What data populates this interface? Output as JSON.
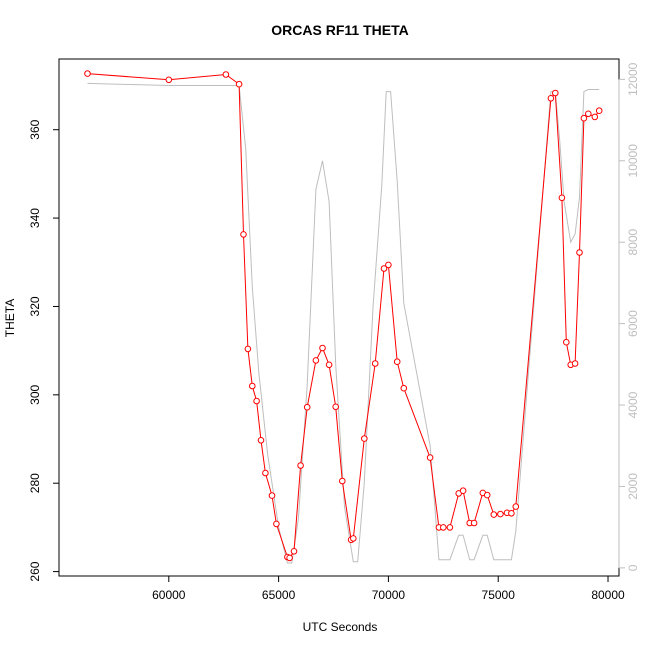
{
  "chart_data": {
    "type": "line",
    "title": "ORCAS RF11 THETA",
    "xlabel": "UTC Seconds",
    "ylabel": "THETA",
    "xlim": [
      55000,
      80500
    ],
    "ylim": [
      259,
      376
    ],
    "y2lim": [
      -200,
      12500
    ],
    "grid": false,
    "x_ticks": [
      60000,
      65000,
      70000,
      75000,
      80000
    ],
    "y_ticks": [
      260,
      280,
      300,
      320,
      340,
      360
    ],
    "y2_ticks": [
      0,
      2000,
      4000,
      6000,
      8000,
      10000,
      12000
    ],
    "colors": {
      "theta": "#ff0000",
      "altitude": "#bebebe",
      "axis": "#000000"
    },
    "series": [
      {
        "role": "theta",
        "x": [
          56300,
          60000,
          62600,
          63200,
          63400,
          63600,
          63800,
          64000,
          64200,
          64400,
          64700,
          64900,
          65400,
          65500,
          65700,
          66000,
          66300,
          66700,
          67000,
          67300,
          67600,
          67900,
          68300,
          68400,
          68900,
          69400,
          69800,
          70000,
          70400,
          70700,
          71900,
          72300,
          72500,
          72800,
          73200,
          73400,
          73700,
          73900,
          74300,
          74500,
          74800,
          75100,
          75400,
          75600,
          75800,
          77400,
          77600,
          77900,
          78100,
          78300,
          78500,
          78700,
          78900,
          79100,
          79400,
          79600
        ],
        "y": [
          372.7,
          371.3,
          372.5,
          370.3,
          336.3,
          310.4,
          302.0,
          298.6,
          289.7,
          282.3,
          277.2,
          270.8,
          263.3,
          263.1,
          264.6,
          284.0,
          297.2,
          307.8,
          310.6,
          306.8,
          297.3,
          280.5,
          267.2,
          267.5,
          290.1,
          307.1,
          328.6,
          329.4,
          307.5,
          301.5,
          285.8,
          270.0,
          270.0,
          270.0,
          277.7,
          278.3,
          271.0,
          271.0,
          277.8,
          277.3,
          272.9,
          273.0,
          273.3,
          273.2,
          274.7,
          367.1,
          368.3,
          344.6,
          311.9,
          306.8,
          307.1,
          332.2,
          362.6,
          363.6,
          362.9,
          364.3
        ]
      },
      {
        "role": "altitude",
        "x": [
          56300,
          60000,
          62600,
          63200,
          63500,
          63800,
          64100,
          64500,
          65000,
          65400,
          65600,
          65900,
          66300,
          66700,
          67000,
          67300,
          67600,
          68000,
          68400,
          68600,
          68900,
          69300,
          69700,
          69900,
          70100,
          70400,
          70700,
          71900,
          72300,
          72500,
          72800,
          73200,
          73400,
          73700,
          73900,
          74300,
          74500,
          74800,
          75100,
          75400,
          75600,
          75800,
          77400,
          77600,
          77800,
          78000,
          78300,
          78500,
          78700,
          78900,
          79100,
          79400,
          79600
        ],
        "y": [
          11900,
          11850,
          11850,
          11850,
          10300,
          6900,
          4800,
          2800,
          1000,
          120,
          120,
          1200,
          4500,
          9300,
          10000,
          9000,
          5000,
          1500,
          150,
          150,
          2100,
          6400,
          9400,
          11700,
          11700,
          9500,
          6500,
          3000,
          200,
          200,
          200,
          800,
          800,
          200,
          200,
          800,
          800,
          200,
          200,
          200,
          200,
          900,
          11700,
          11700,
          10500,
          9000,
          8000,
          8200,
          9100,
          11700,
          11750,
          11750,
          11750
        ]
      }
    ]
  }
}
